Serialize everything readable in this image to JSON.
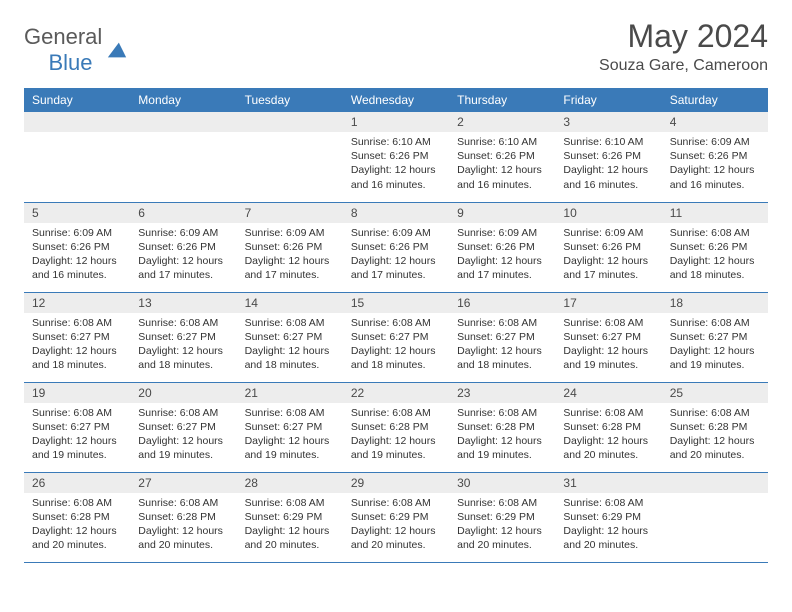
{
  "logo": {
    "text_general": "General",
    "text_blue": "Blue"
  },
  "title": "May 2024",
  "location": "Souza Gare, Cameroon",
  "colors": {
    "header_bg": "#3a7ab8",
    "header_text": "#ffffff",
    "daynum_bg": "#ededed",
    "border": "#3a7ab8",
    "body_text": "#333333",
    "title_text": "#4a4a4a"
  },
  "days_of_week": [
    "Sunday",
    "Monday",
    "Tuesday",
    "Wednesday",
    "Thursday",
    "Friday",
    "Saturday"
  ],
  "weeks": [
    [
      {
        "n": "",
        "lines": []
      },
      {
        "n": "",
        "lines": []
      },
      {
        "n": "",
        "lines": []
      },
      {
        "n": "1",
        "lines": [
          "Sunrise: 6:10 AM",
          "Sunset: 6:26 PM",
          "Daylight: 12 hours and 16 minutes."
        ]
      },
      {
        "n": "2",
        "lines": [
          "Sunrise: 6:10 AM",
          "Sunset: 6:26 PM",
          "Daylight: 12 hours and 16 minutes."
        ]
      },
      {
        "n": "3",
        "lines": [
          "Sunrise: 6:10 AM",
          "Sunset: 6:26 PM",
          "Daylight: 12 hours and 16 minutes."
        ]
      },
      {
        "n": "4",
        "lines": [
          "Sunrise: 6:09 AM",
          "Sunset: 6:26 PM",
          "Daylight: 12 hours and 16 minutes."
        ]
      }
    ],
    [
      {
        "n": "5",
        "lines": [
          "Sunrise: 6:09 AM",
          "Sunset: 6:26 PM",
          "Daylight: 12 hours and 16 minutes."
        ]
      },
      {
        "n": "6",
        "lines": [
          "Sunrise: 6:09 AM",
          "Sunset: 6:26 PM",
          "Daylight: 12 hours and 17 minutes."
        ]
      },
      {
        "n": "7",
        "lines": [
          "Sunrise: 6:09 AM",
          "Sunset: 6:26 PM",
          "Daylight: 12 hours and 17 minutes."
        ]
      },
      {
        "n": "8",
        "lines": [
          "Sunrise: 6:09 AM",
          "Sunset: 6:26 PM",
          "Daylight: 12 hours and 17 minutes."
        ]
      },
      {
        "n": "9",
        "lines": [
          "Sunrise: 6:09 AM",
          "Sunset: 6:26 PM",
          "Daylight: 12 hours and 17 minutes."
        ]
      },
      {
        "n": "10",
        "lines": [
          "Sunrise: 6:09 AM",
          "Sunset: 6:26 PM",
          "Daylight: 12 hours and 17 minutes."
        ]
      },
      {
        "n": "11",
        "lines": [
          "Sunrise: 6:08 AM",
          "Sunset: 6:26 PM",
          "Daylight: 12 hours and 18 minutes."
        ]
      }
    ],
    [
      {
        "n": "12",
        "lines": [
          "Sunrise: 6:08 AM",
          "Sunset: 6:27 PM",
          "Daylight: 12 hours and 18 minutes."
        ]
      },
      {
        "n": "13",
        "lines": [
          "Sunrise: 6:08 AM",
          "Sunset: 6:27 PM",
          "Daylight: 12 hours and 18 minutes."
        ]
      },
      {
        "n": "14",
        "lines": [
          "Sunrise: 6:08 AM",
          "Sunset: 6:27 PM",
          "Daylight: 12 hours and 18 minutes."
        ]
      },
      {
        "n": "15",
        "lines": [
          "Sunrise: 6:08 AM",
          "Sunset: 6:27 PM",
          "Daylight: 12 hours and 18 minutes."
        ]
      },
      {
        "n": "16",
        "lines": [
          "Sunrise: 6:08 AM",
          "Sunset: 6:27 PM",
          "Daylight: 12 hours and 18 minutes."
        ]
      },
      {
        "n": "17",
        "lines": [
          "Sunrise: 6:08 AM",
          "Sunset: 6:27 PM",
          "Daylight: 12 hours and 19 minutes."
        ]
      },
      {
        "n": "18",
        "lines": [
          "Sunrise: 6:08 AM",
          "Sunset: 6:27 PM",
          "Daylight: 12 hours and 19 minutes."
        ]
      }
    ],
    [
      {
        "n": "19",
        "lines": [
          "Sunrise: 6:08 AM",
          "Sunset: 6:27 PM",
          "Daylight: 12 hours and 19 minutes."
        ]
      },
      {
        "n": "20",
        "lines": [
          "Sunrise: 6:08 AM",
          "Sunset: 6:27 PM",
          "Daylight: 12 hours and 19 minutes."
        ]
      },
      {
        "n": "21",
        "lines": [
          "Sunrise: 6:08 AM",
          "Sunset: 6:27 PM",
          "Daylight: 12 hours and 19 minutes."
        ]
      },
      {
        "n": "22",
        "lines": [
          "Sunrise: 6:08 AM",
          "Sunset: 6:28 PM",
          "Daylight: 12 hours and 19 minutes."
        ]
      },
      {
        "n": "23",
        "lines": [
          "Sunrise: 6:08 AM",
          "Sunset: 6:28 PM",
          "Daylight: 12 hours and 19 minutes."
        ]
      },
      {
        "n": "24",
        "lines": [
          "Sunrise: 6:08 AM",
          "Sunset: 6:28 PM",
          "Daylight: 12 hours and 20 minutes."
        ]
      },
      {
        "n": "25",
        "lines": [
          "Sunrise: 6:08 AM",
          "Sunset: 6:28 PM",
          "Daylight: 12 hours and 20 minutes."
        ]
      }
    ],
    [
      {
        "n": "26",
        "lines": [
          "Sunrise: 6:08 AM",
          "Sunset: 6:28 PM",
          "Daylight: 12 hours and 20 minutes."
        ]
      },
      {
        "n": "27",
        "lines": [
          "Sunrise: 6:08 AM",
          "Sunset: 6:28 PM",
          "Daylight: 12 hours and 20 minutes."
        ]
      },
      {
        "n": "28",
        "lines": [
          "Sunrise: 6:08 AM",
          "Sunset: 6:29 PM",
          "Daylight: 12 hours and 20 minutes."
        ]
      },
      {
        "n": "29",
        "lines": [
          "Sunrise: 6:08 AM",
          "Sunset: 6:29 PM",
          "Daylight: 12 hours and 20 minutes."
        ]
      },
      {
        "n": "30",
        "lines": [
          "Sunrise: 6:08 AM",
          "Sunset: 6:29 PM",
          "Daylight: 12 hours and 20 minutes."
        ]
      },
      {
        "n": "31",
        "lines": [
          "Sunrise: 6:08 AM",
          "Sunset: 6:29 PM",
          "Daylight: 12 hours and 20 minutes."
        ]
      },
      {
        "n": "",
        "lines": []
      }
    ]
  ]
}
